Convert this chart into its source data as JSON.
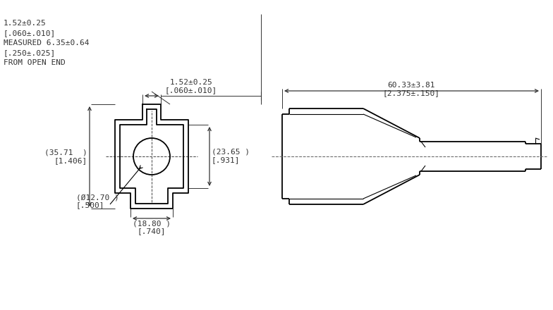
{
  "bg_color": "#ffffff",
  "line_color": "#000000",
  "dim_color": "#333333",
  "lw": 1.3,
  "lw_thin": 0.8,
  "annotations": {
    "top_dim_label1": "1.52±0.25",
    "top_dim_label2": "[.060±.010]",
    "top_dim_label3": "MEASURED 6.35±0.64",
    "top_dim_label4": "[.250±.025]",
    "top_dim_label5": "FROM OPEN END",
    "left_dim_label1": "(35.71  )",
    "left_dim_label2": "[1.406]",
    "right_dim_label1": "(23.65 )",
    "right_dim_label2": "[.931]",
    "bottom_dim_label1": "(Ø12.70 )",
    "bottom_dim_label2": "[.500]",
    "bottom_width_label1": "(18.80 )",
    "bottom_width_label2": "[.740]",
    "top_right_dim1": "60.33±3.81",
    "top_right_dim2": "[2.375±.150]"
  }
}
